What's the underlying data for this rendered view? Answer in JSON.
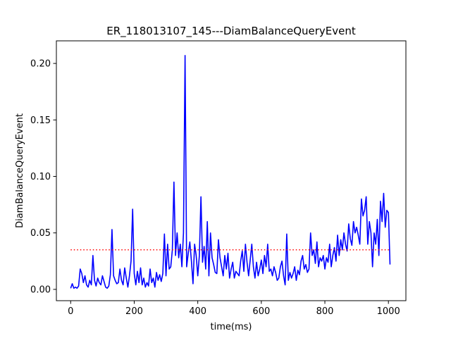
{
  "chart_data": {
    "type": "line",
    "title": "ER_118013107_145---DiamBalanceQueryEvent",
    "xlabel": "time(ms)",
    "ylabel": "DiamBalanceQueryEvent",
    "xlim": [
      -45,
      1055
    ],
    "ylim": [
      -0.01,
      0.22
    ],
    "xticks": [
      0,
      200,
      400,
      600,
      800,
      1000
    ],
    "xtick_labels": [
      "0",
      "200",
      "400",
      "600",
      "800",
      "1000"
    ],
    "yticks": [
      0.0,
      0.05,
      0.1,
      0.15,
      0.2
    ],
    "ytick_labels": [
      "0.00",
      "0.05",
      "0.10",
      "0.15",
      "0.20"
    ],
    "grid": false,
    "series": [
      {
        "color": "#0000ff",
        "style": "solid",
        "x": [
          0,
          5,
          10,
          15,
          20,
          25,
          30,
          35,
          40,
          45,
          50,
          55,
          60,
          65,
          70,
          75,
          80,
          85,
          90,
          95,
          100,
          105,
          110,
          115,
          120,
          125,
          130,
          135,
          140,
          145,
          150,
          155,
          160,
          165,
          170,
          175,
          180,
          185,
          190,
          195,
          200,
          205,
          210,
          215,
          220,
          225,
          230,
          235,
          240,
          245,
          250,
          255,
          260,
          265,
          270,
          275,
          280,
          285,
          290,
          295,
          300,
          305,
          310,
          315,
          320,
          325,
          330,
          335,
          340,
          345,
          350,
          355,
          360,
          365,
          370,
          375,
          380,
          385,
          390,
          395,
          400,
          405,
          410,
          415,
          420,
          425,
          430,
          435,
          440,
          445,
          450,
          455,
          460,
          465,
          470,
          475,
          480,
          485,
          490,
          495,
          500,
          505,
          510,
          515,
          520,
          525,
          530,
          535,
          540,
          545,
          550,
          555,
          560,
          565,
          570,
          575,
          580,
          585,
          590,
          595,
          600,
          605,
          610,
          615,
          620,
          625,
          630,
          635,
          640,
          645,
          650,
          655,
          660,
          665,
          670,
          675,
          680,
          685,
          690,
          695,
          700,
          705,
          710,
          715,
          720,
          725,
          730,
          735,
          740,
          745,
          750,
          755,
          760,
          765,
          770,
          775,
          780,
          785,
          790,
          795,
          800,
          805,
          810,
          815,
          820,
          825,
          830,
          835,
          840,
          845,
          850,
          855,
          860,
          865,
          870,
          875,
          880,
          885,
          890,
          895,
          900,
          905,
          910,
          915,
          920,
          925,
          930,
          935,
          940,
          945,
          950,
          955,
          960,
          965,
          970,
          975,
          980,
          985,
          990,
          995,
          1000,
          1005
        ],
        "y": [
          0.001,
          0.005,
          0.001,
          0.002,
          0.001,
          0.003,
          0.018,
          0.014,
          0.006,
          0.012,
          0.004,
          0.002,
          0.008,
          0.004,
          0.03,
          0.008,
          0.003,
          0.01,
          0.006,
          0.004,
          0.012,
          0.007,
          0.002,
          0.001,
          0.003,
          0.013,
          0.053,
          0.012,
          0.008,
          0.005,
          0.006,
          0.018,
          0.008,
          0.004,
          0.019,
          0.01,
          0.002,
          0.012,
          0.025,
          0.071,
          0.014,
          0.004,
          0.016,
          0.006,
          0.019,
          0.004,
          0.01,
          0.002,
          0.006,
          0.003,
          0.018,
          0.006,
          0.01,
          0.002,
          0.015,
          0.008,
          0.013,
          0.007,
          0.014,
          0.049,
          0.012,
          0.04,
          0.018,
          0.02,
          0.035,
          0.095,
          0.03,
          0.05,
          0.028,
          0.04,
          0.02,
          0.05,
          0.207,
          0.02,
          0.032,
          0.042,
          0.025,
          0.005,
          0.04,
          0.03,
          0.012,
          0.03,
          0.082,
          0.024,
          0.038,
          0.018,
          0.06,
          0.012,
          0.05,
          0.028,
          0.022,
          0.015,
          0.014,
          0.044,
          0.028,
          0.02,
          0.012,
          0.03,
          0.018,
          0.032,
          0.01,
          0.018,
          0.024,
          0.01,
          0.016,
          0.014,
          0.012,
          0.025,
          0.034,
          0.016,
          0.04,
          0.024,
          0.012,
          0.026,
          0.04,
          0.02,
          0.01,
          0.024,
          0.012,
          0.018,
          0.026,
          0.014,
          0.03,
          0.02,
          0.04,
          0.016,
          0.018,
          0.012,
          0.02,
          0.015,
          0.008,
          0.01,
          0.02,
          0.025,
          0.012,
          0.004,
          0.049,
          0.008,
          0.015,
          0.01,
          0.014,
          0.02,
          0.008,
          0.017,
          0.013,
          0.025,
          0.03,
          0.018,
          0.022,
          0.015,
          0.018,
          0.05,
          0.03,
          0.035,
          0.023,
          0.042,
          0.02,
          0.028,
          0.025,
          0.03,
          0.018,
          0.028,
          0.024,
          0.04,
          0.02,
          0.03,
          0.037,
          0.025,
          0.048,
          0.03,
          0.044,
          0.035,
          0.05,
          0.04,
          0.034,
          0.058,
          0.045,
          0.039,
          0.06,
          0.05,
          0.055,
          0.048,
          0.04,
          0.08,
          0.065,
          0.07,
          0.082,
          0.04,
          0.06,
          0.05,
          0.02,
          0.05,
          0.04,
          0.062,
          0.03,
          0.078,
          0.06,
          0.085,
          0.055,
          0.07,
          0.068,
          0.022
        ]
      },
      {
        "color": "#ff0000",
        "style": "dotted",
        "x": [
          0,
          1005
        ],
        "y": [
          0.035,
          0.035
        ]
      }
    ]
  }
}
